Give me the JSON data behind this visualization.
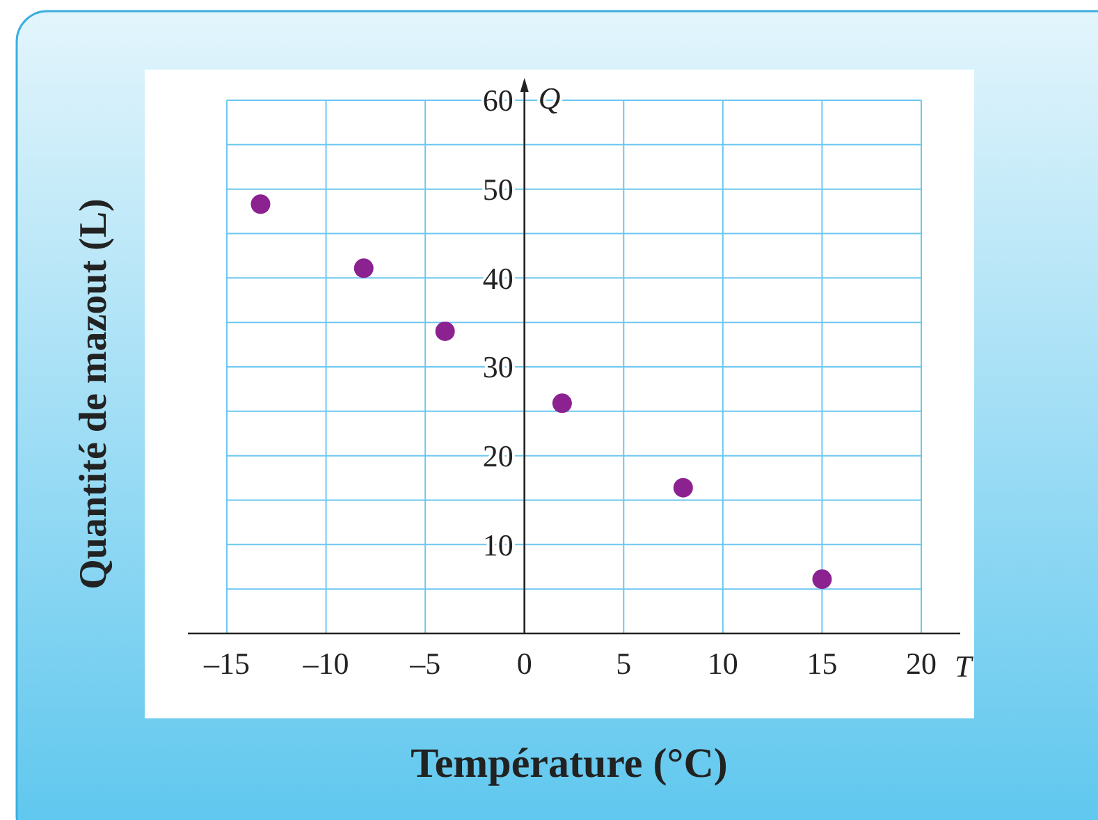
{
  "chart_data": {
    "type": "scatter",
    "xlabel": "Température (°C)",
    "ylabel": "Quantité de mazout (L)",
    "annotations": [
      "Q",
      "T"
    ],
    "x": [
      -13.3,
      -8.1,
      -4.0,
      1.9,
      8.0,
      15.0
    ],
    "series": [
      {
        "color": "#8b2290",
        "values": [
          48.3,
          41.1,
          34.0,
          25.9,
          16.4,
          6.1
        ]
      }
    ],
    "xlim": [
      -15,
      20
    ],
    "xticks": [
      {
        "value": -15,
        "label": "–15"
      },
      {
        "value": -10,
        "label": "–10"
      },
      {
        "value": -5,
        "label": "–5"
      },
      0,
      5,
      10,
      15,
      20
    ],
    "ylim": [
      0,
      60
    ],
    "yticks": [
      {
        "value": 5,
        "label": null
      },
      10,
      {
        "value": 15,
        "label": null
      },
      20,
      {
        "value": 25,
        "label": null
      },
      30,
      {
        "value": 35,
        "label": null
      },
      40,
      {
        "value": 45,
        "label": null
      },
      50,
      {
        "value": 55,
        "label": null
      },
      60
    ],
    "grid": true,
    "marker": "circle"
  }
}
